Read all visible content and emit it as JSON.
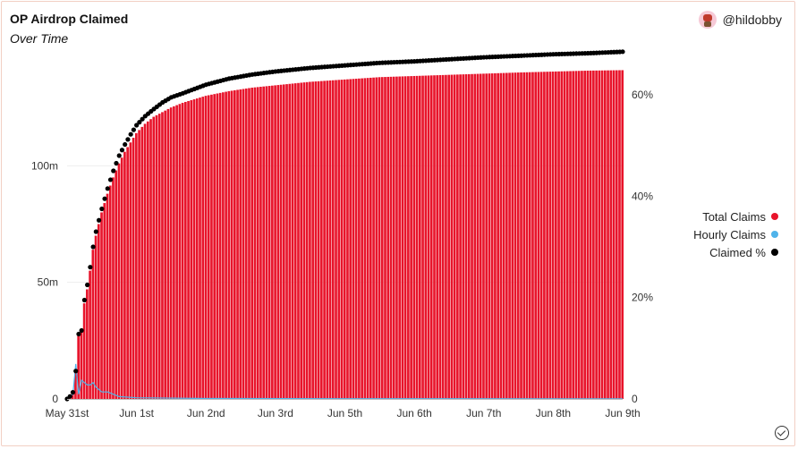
{
  "header": {
    "title": "OP Airdrop Claimed",
    "subtitle": "Over Time",
    "author": "@hildobby"
  },
  "legend": [
    {
      "label": "Total Claims",
      "color": "#e8142b"
    },
    {
      "label": "Hourly Claims",
      "color": "#4fb3ea"
    },
    {
      "label": "Claimed %",
      "color": "#000000"
    }
  ],
  "chart_data": {
    "type": "bar",
    "title": "OP Airdrop Claimed",
    "subtitle": "Over Time",
    "x_ticks": [
      "May 31st",
      "Jun 1st",
      "Jun 2nd",
      "Jun 3rd",
      "Jun 5th",
      "Jun 6th",
      "Jun 7th",
      "Jun 8th",
      "Jun 9th"
    ],
    "x_tick_hours": [
      0,
      24,
      48,
      72,
      96,
      120,
      144,
      168,
      192
    ],
    "y_left_ticks": [
      "0",
      "50m",
      "100m"
    ],
    "y_left_tick_values": [
      0,
      50000000,
      100000000
    ],
    "y_left_lim": [
      0,
      150000000
    ],
    "y_right_ticks": [
      "0",
      "20%",
      "40%",
      "60%"
    ],
    "y_right_tick_values": [
      0,
      20,
      40,
      60
    ],
    "y_right_lim": [
      0,
      69
    ],
    "grid": true,
    "legend_position": "right",
    "series": [
      {
        "name": "Total Claims",
        "type": "bar",
        "axis": "left",
        "color": "#e8142b",
        "points": [
          [
            0,
            0
          ],
          [
            1,
            1000000
          ],
          [
            2,
            3000000
          ],
          [
            3,
            12000000
          ],
          [
            4,
            27000000
          ],
          [
            5,
            29000000
          ],
          [
            6,
            41000000
          ],
          [
            7,
            47000000
          ],
          [
            8,
            55000000
          ],
          [
            9,
            64000000
          ],
          [
            10,
            70000000
          ],
          [
            12,
            80000000
          ],
          [
            14,
            88000000
          ],
          [
            16,
            95000000
          ],
          [
            18,
            101000000
          ],
          [
            20,
            106000000
          ],
          [
            22,
            110000000
          ],
          [
            24,
            114000000
          ],
          [
            27,
            118000000
          ],
          [
            30,
            121000000
          ],
          [
            33,
            123000000
          ],
          [
            36,
            125000000
          ],
          [
            40,
            127000000
          ],
          [
            48,
            130000000
          ],
          [
            56,
            132000000
          ],
          [
            64,
            133500000
          ],
          [
            72,
            134500000
          ],
          [
            84,
            136000000
          ],
          [
            96,
            137000000
          ],
          [
            108,
            138000000
          ],
          [
            120,
            138500000
          ],
          [
            132,
            139000000
          ],
          [
            144,
            139500000
          ],
          [
            156,
            140000000
          ],
          [
            168,
            140400000
          ],
          [
            180,
            140800000
          ],
          [
            192,
            141000000
          ]
        ]
      },
      {
        "name": "Hourly Claims",
        "type": "line",
        "axis": "left",
        "color": "#4fb3ea",
        "points": [
          [
            0,
            0
          ],
          [
            2,
            2000000
          ],
          [
            3,
            15000000
          ],
          [
            4,
            2000000
          ],
          [
            5,
            8000000
          ],
          [
            6,
            7000000
          ],
          [
            7,
            6000000
          ],
          [
            8,
            6000000
          ],
          [
            9,
            7000000
          ],
          [
            10,
            5000000
          ],
          [
            12,
            3000000
          ],
          [
            14,
            3000000
          ],
          [
            18,
            1000000
          ],
          [
            24,
            500000
          ],
          [
            48,
            200000
          ],
          [
            96,
            100000
          ],
          [
            192,
            50000
          ]
        ]
      },
      {
        "name": "Claimed %",
        "type": "scatter",
        "axis": "right",
        "color": "#000000",
        "points": [
          [
            0,
            0
          ],
          [
            1,
            0.5
          ],
          [
            2,
            1.3
          ],
          [
            3,
            5.5
          ],
          [
            4,
            12.8
          ],
          [
            5,
            13.5
          ],
          [
            6,
            19.5
          ],
          [
            7,
            22.5
          ],
          [
            8,
            26
          ],
          [
            9,
            30
          ],
          [
            10,
            33
          ],
          [
            12,
            37.5
          ],
          [
            14,
            41.5
          ],
          [
            16,
            45
          ],
          [
            18,
            48
          ],
          [
            20,
            50.2
          ],
          [
            22,
            52.2
          ],
          [
            24,
            54
          ],
          [
            27,
            55.8
          ],
          [
            30,
            57.2
          ],
          [
            33,
            58.5
          ],
          [
            36,
            59.5
          ],
          [
            40,
            60.3
          ],
          [
            48,
            62
          ],
          [
            56,
            63.2
          ],
          [
            64,
            64
          ],
          [
            72,
            64.6
          ],
          [
            84,
            65.3
          ],
          [
            96,
            65.8
          ],
          [
            108,
            66.3
          ],
          [
            120,
            66.6
          ],
          [
            132,
            67
          ],
          [
            144,
            67.4
          ],
          [
            156,
            67.7
          ],
          [
            168,
            68
          ],
          [
            180,
            68.2
          ],
          [
            192,
            68.5
          ]
        ]
      }
    ]
  }
}
